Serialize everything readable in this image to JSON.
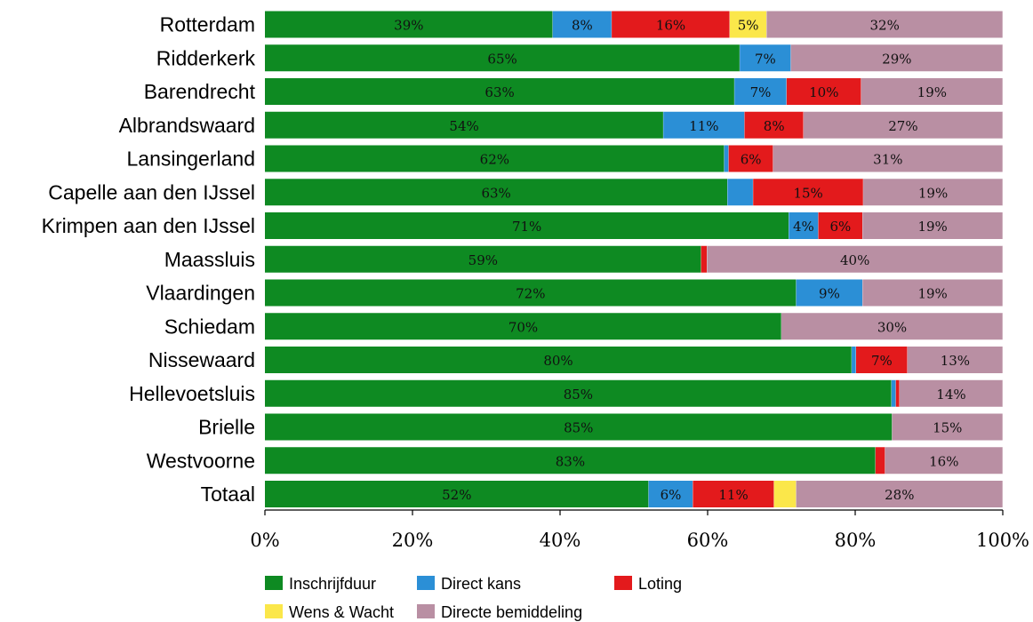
{
  "chart_data": {
    "type": "bar",
    "orientation": "horizontal",
    "stacked": true,
    "categories": [
      "Rotterdam",
      "Ridderkerk",
      "Barendrecht",
      "Albrandswaard",
      "Lansingerland",
      "Capelle aan den IJssel",
      "Krimpen aan den IJssel",
      "Maassluis",
      "Vlaardingen",
      "Schiedam",
      "Nissewaard",
      "Hellevoetsluis",
      "Brielle",
      "Westvoorne",
      "Totaal"
    ],
    "series": [
      {
        "name": "Inschrijfduur",
        "color": "#0e8a22",
        "values": [
          39,
          65,
          63,
          54,
          62,
          63,
          71,
          59,
          72,
          70,
          80,
          85,
          85,
          83,
          52
        ]
      },
      {
        "name": "Direct kans",
        "color": "#2b8fd6",
        "values": [
          8,
          7,
          7,
          11,
          0.6,
          3.5,
          4,
          0,
          9,
          0,
          0.6,
          0.6,
          0,
          0,
          6
        ]
      },
      {
        "name": "Loting",
        "color": "#e31a1c",
        "values": [
          16,
          0,
          10,
          8,
          6,
          15,
          6,
          0.8,
          0,
          0,
          7,
          0.5,
          0,
          1.3,
          11
        ]
      },
      {
        "name": "Wens & Wacht",
        "color": "#fbe74a",
        "values": [
          5,
          0,
          0,
          0,
          0,
          0,
          0,
          0,
          0,
          0,
          0,
          0,
          0,
          0,
          3
        ]
      },
      {
        "name": "Directe bemiddeling",
        "color": "#b98fa3",
        "values": [
          32,
          29,
          19,
          27,
          31,
          19,
          19,
          40,
          19,
          30,
          13,
          14,
          15,
          16,
          28
        ]
      }
    ],
    "labels": [
      [
        "39%",
        "65%",
        "63%",
        "54%",
        "62%",
        "63%",
        "71%",
        "59%",
        "72%",
        "70%",
        "80%",
        "85%",
        "85%",
        "83%",
        "52%"
      ],
      [
        "8%",
        "7%",
        "7%",
        "11%",
        "",
        "",
        "4%",
        "",
        "9%",
        "",
        "",
        "",
        "",
        "",
        "6%"
      ],
      [
        "16%",
        "",
        "10%",
        "8%",
        "6%",
        "15%",
        "6%",
        "",
        "",
        "",
        "7%",
        "",
        "",
        "",
        "11%"
      ],
      [
        "5%",
        "",
        "",
        "",
        "",
        "",
        "",
        "",
        "",
        "",
        "",
        "",
        "",
        "",
        ""
      ],
      [
        "32%",
        "29%",
        "19%",
        "27%",
        "31%",
        "19%",
        "19%",
        "40%",
        "19%",
        "30%",
        "13%",
        "14%",
        "15%",
        "16%",
        "28%"
      ]
    ],
    "xlim": [
      0,
      100
    ],
    "xticks": [
      "0%",
      "20%",
      "40%",
      "60%",
      "80%",
      "100%"
    ],
    "legend_position": "bottom",
    "grid": false
  }
}
